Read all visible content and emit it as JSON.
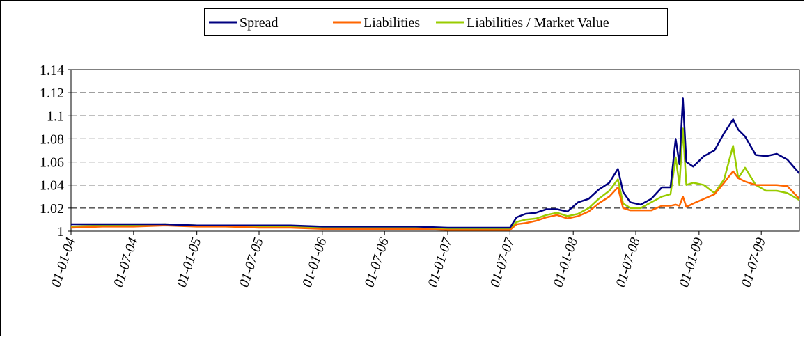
{
  "chart_data": {
    "type": "line",
    "x": [
      "2004-01-01",
      "2004-04-01",
      "2004-07-01",
      "2004-10-01",
      "2005-01-01",
      "2005-04-01",
      "2005-07-01",
      "2005-10-01",
      "2006-01-01",
      "2006-04-01",
      "2006-07-01",
      "2006-10-01",
      "2007-01-01",
      "2007-04-01",
      "2007-07-01",
      "2007-07-20",
      "2007-08-15",
      "2007-09-15",
      "2007-10-15",
      "2007-11-15",
      "2007-12-15",
      "2008-01-15",
      "2008-02-15",
      "2008-03-15",
      "2008-04-15",
      "2008-05-10",
      "2008-05-25",
      "2008-06-15",
      "2008-07-15",
      "2008-08-15",
      "2008-09-15",
      "2008-10-10",
      "2008-10-25",
      "2008-11-05",
      "2008-11-15",
      "2008-11-25",
      "2008-12-15",
      "2009-01-15",
      "2009-02-15",
      "2009-03-15",
      "2009-04-10",
      "2009-04-25",
      "2009-05-15",
      "2009-06-15",
      "2009-07-15",
      "2009-08-15",
      "2009-09-15",
      "2009-10-20"
    ],
    "series": [
      {
        "name": "Spread",
        "color": "#000080",
        "values": [
          1.006,
          1.006,
          1.006,
          1.006,
          1.005,
          1.005,
          1.005,
          1.005,
          1.004,
          1.004,
          1.004,
          1.004,
          1.003,
          1.003,
          1.003,
          1.012,
          1.015,
          1.016,
          1.019,
          1.019,
          1.017,
          1.025,
          1.028,
          1.036,
          1.042,
          1.054,
          1.034,
          1.025,
          1.023,
          1.028,
          1.038,
          1.038,
          1.08,
          1.058,
          1.115,
          1.06,
          1.056,
          1.065,
          1.07,
          1.085,
          1.097,
          1.088,
          1.082,
          1.066,
          1.065,
          1.067,
          1.062,
          1.05
        ]
      },
      {
        "name": "Liabilities",
        "color": "#ff6600",
        "values": [
          1.003,
          1.004,
          1.004,
          1.005,
          1.004,
          1.004,
          1.003,
          1.003,
          1.002,
          1.002,
          1.002,
          1.002,
          1.001,
          1.001,
          1.001,
          1.006,
          1.007,
          1.009,
          1.012,
          1.014,
          1.011,
          1.013,
          1.017,
          1.024,
          1.03,
          1.038,
          1.02,
          1.018,
          1.018,
          1.018,
          1.022,
          1.022,
          1.023,
          1.022,
          1.03,
          1.021,
          1.024,
          1.028,
          1.032,
          1.042,
          1.052,
          1.046,
          1.043,
          1.04,
          1.04,
          1.04,
          1.039,
          1.028
        ]
      },
      {
        "name": "Liabilities / Market Value",
        "color": "#99cc00",
        "values": [
          1.004,
          1.005,
          1.005,
          1.006,
          1.005,
          1.004,
          1.004,
          1.004,
          1.003,
          1.003,
          1.003,
          1.003,
          1.002,
          1.002,
          1.002,
          1.008,
          1.01,
          1.011,
          1.014,
          1.016,
          1.013,
          1.015,
          1.02,
          1.028,
          1.035,
          1.045,
          1.024,
          1.02,
          1.02,
          1.025,
          1.03,
          1.032,
          1.064,
          1.04,
          1.089,
          1.04,
          1.042,
          1.04,
          1.033,
          1.045,
          1.074,
          1.046,
          1.055,
          1.04,
          1.035,
          1.035,
          1.033,
          1.027
        ]
      }
    ],
    "xlim": [
      "2004-01-01",
      "2009-10-20"
    ],
    "xticks": [
      {
        "value": "2004-01-01",
        "label": "01-01-04"
      },
      {
        "value": "2004-07-01",
        "label": "01-07-04"
      },
      {
        "value": "2005-01-01",
        "label": "01-01-05"
      },
      {
        "value": "2005-07-01",
        "label": "01-07-05"
      },
      {
        "value": "2006-01-01",
        "label": "01-01-06"
      },
      {
        "value": "2006-07-01",
        "label": "01-07-06"
      },
      {
        "value": "2007-01-01",
        "label": "01-01-07"
      },
      {
        "value": "2007-07-01",
        "label": "01-07-07"
      },
      {
        "value": "2008-01-01",
        "label": "01-01-08"
      },
      {
        "value": "2008-07-01",
        "label": "01-07-08"
      },
      {
        "value": "2009-01-01",
        "label": "01-01-09"
      },
      {
        "value": "2009-07-01",
        "label": "01-07-09"
      }
    ],
    "ylim": [
      1,
      1.14
    ],
    "yticks": [
      1,
      1.02,
      1.04,
      1.06,
      1.08,
      1.1,
      1.12,
      1.14
    ],
    "grid": true,
    "legend": "top"
  }
}
